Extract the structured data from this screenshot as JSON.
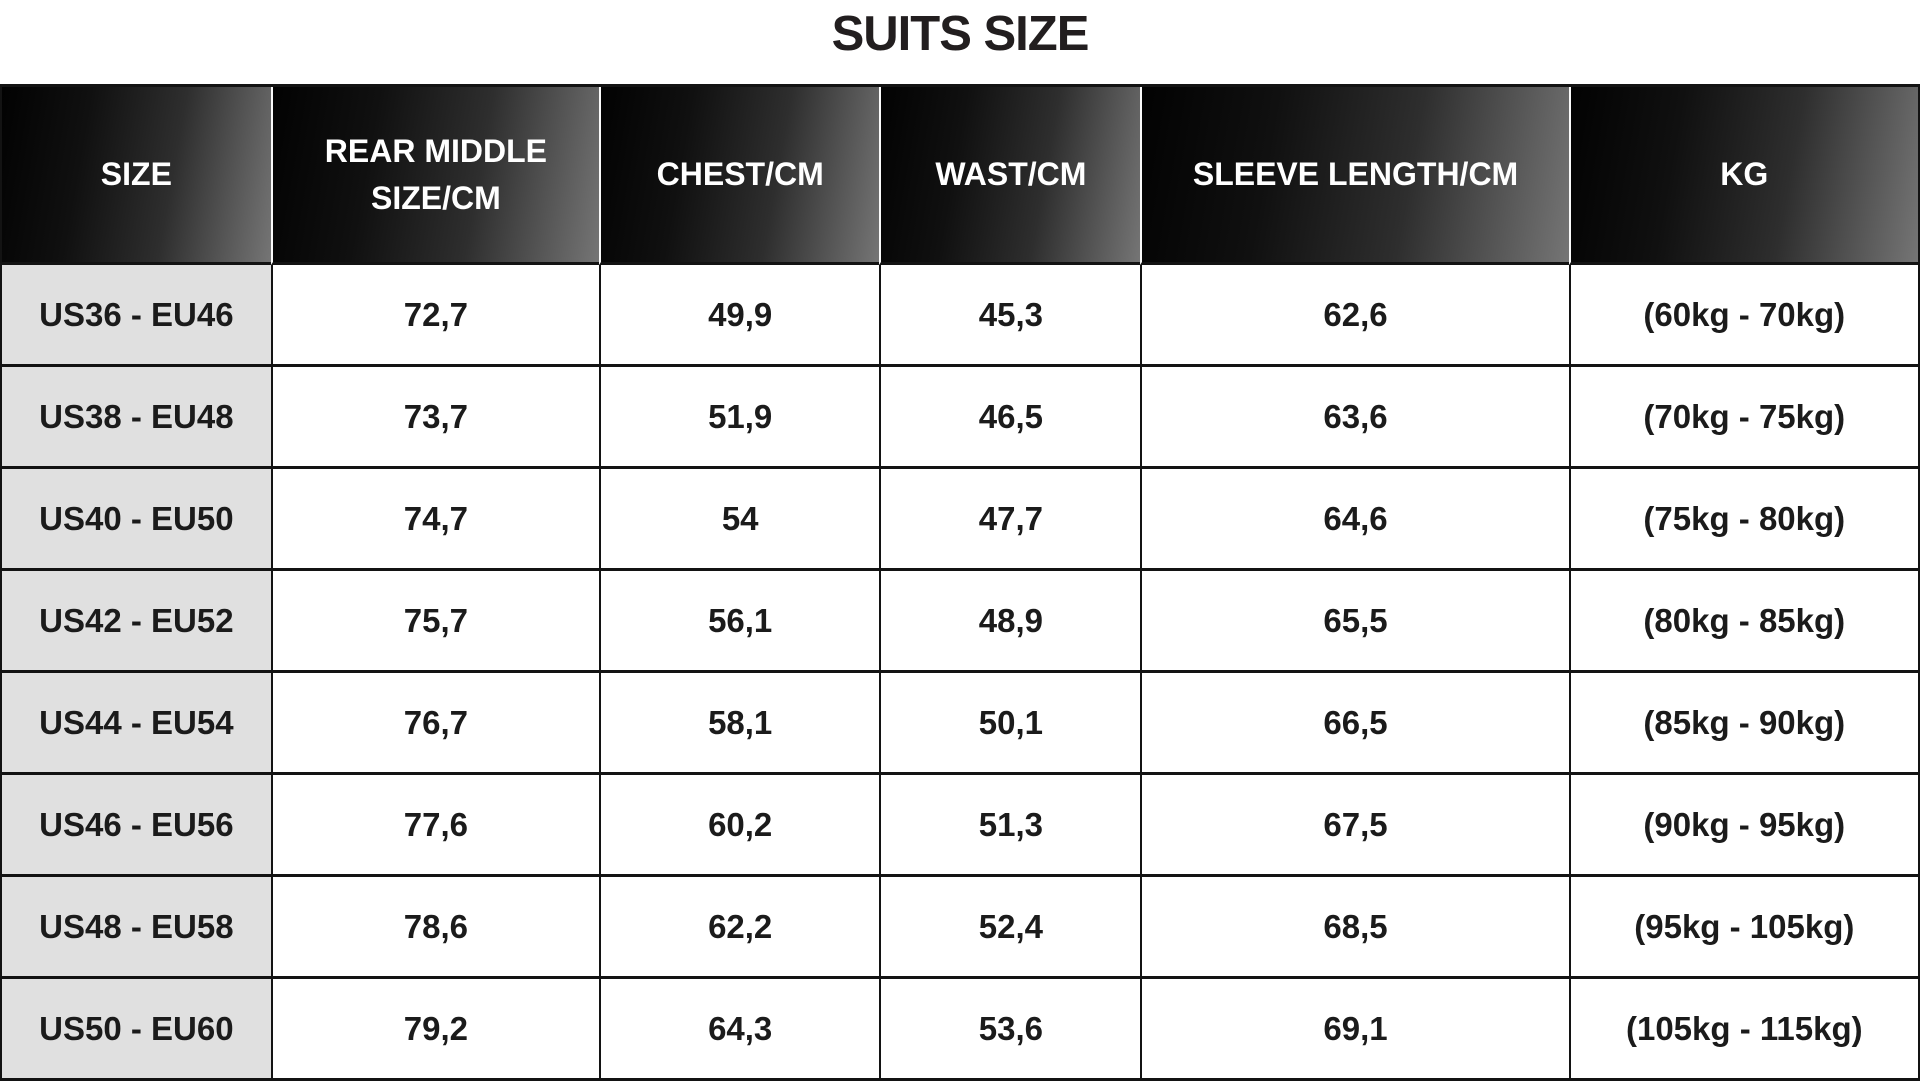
{
  "title": "SUITS SIZE",
  "chart_data": {
    "type": "table",
    "title": "SUITS SIZE",
    "columns": [
      "SIZE",
      "REAR MIDDLE SIZE/CM",
      "CHEST/CM",
      "WAST/CM",
      "SLEEVE LENGTH/CM",
      "KG"
    ],
    "rows": [
      [
        "US36 - EU46",
        "72,7",
        "49,9",
        "45,3",
        "62,6",
        "(60kg - 70kg)"
      ],
      [
        "US38 - EU48",
        "73,7",
        "51,9",
        "46,5",
        "63,6",
        "(70kg - 75kg)"
      ],
      [
        "US40 - EU50",
        "74,7",
        "54",
        "47,7",
        "64,6",
        "(75kg - 80kg)"
      ],
      [
        "US42 - EU52",
        "75,7",
        "56,1",
        "48,9",
        "65,5",
        "(80kg - 85kg)"
      ],
      [
        "US44 - EU54",
        "76,7",
        "58,1",
        "50,1",
        "66,5",
        "(85kg - 90kg)"
      ],
      [
        "US46 - EU56",
        "77,6",
        "60,2",
        "51,3",
        "67,5",
        "(90kg - 95kg)"
      ],
      [
        "US48 - EU58",
        "78,6",
        "62,2",
        "52,4",
        "68,5",
        "(95kg - 105kg)"
      ],
      [
        "US50 - EU60",
        "79,2",
        "64,3",
        "53,6",
        "69,1",
        "(105kg - 115kg)"
      ]
    ],
    "layout": {
      "header_position": "top",
      "grid": true,
      "first_column_highlighted": true
    },
    "colors": {
      "header_gradient_start": "#020202",
      "header_gradient_end": "#757575",
      "header_text": "#ffffff",
      "size_column_bg": "#e0e0e0",
      "cell_bg": "#ffffff",
      "border": "#131313",
      "body_text": "#1b1b1b",
      "title_text": "#221e1f"
    }
  }
}
